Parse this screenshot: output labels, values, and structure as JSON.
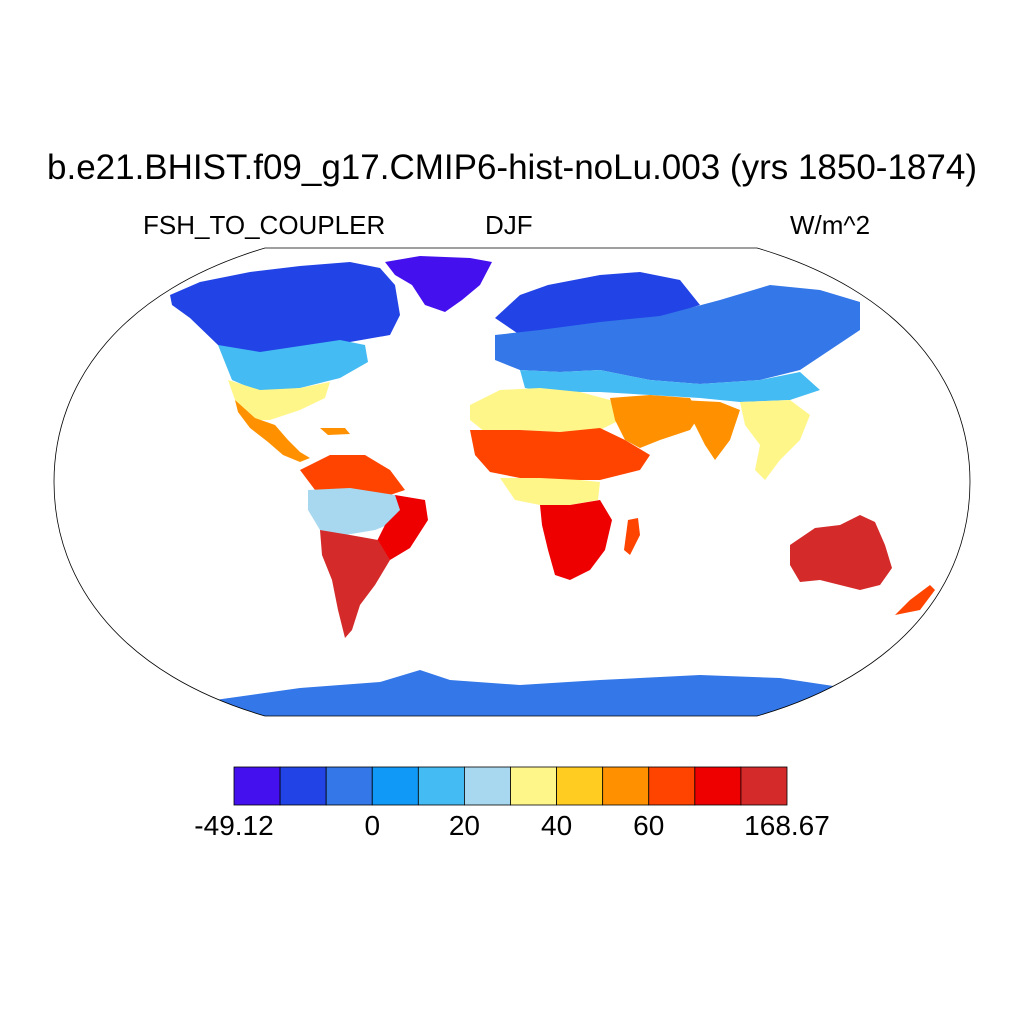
{
  "title": "b.e21.BHIST.f09_g17.CMIP6-hist-noLu.003 (yrs 1850-1874)",
  "variable": "FSH_TO_COUPLER",
  "season": "DJF",
  "units": "W/m^2",
  "colorbar": {
    "colors": [
      "#4411ee",
      "#2244e6",
      "#3377e8",
      "#1199f8",
      "#44bbf2",
      "#a8d8f0",
      "#fff68a",
      "#ffcc22",
      "#ff9100",
      "#ff4400",
      "#ee0000",
      "#d42a2a"
    ],
    "tick_labels": [
      {
        "text": "-49.12",
        "boundary": 0
      },
      {
        "text": "0",
        "boundary": 3
      },
      {
        "text": "20",
        "boundary": 5
      },
      {
        "text": "40",
        "boundary": 7
      },
      {
        "text": "60",
        "boundary": 9
      },
      {
        "text": "168.67",
        "boundary": 12
      }
    ]
  }
}
